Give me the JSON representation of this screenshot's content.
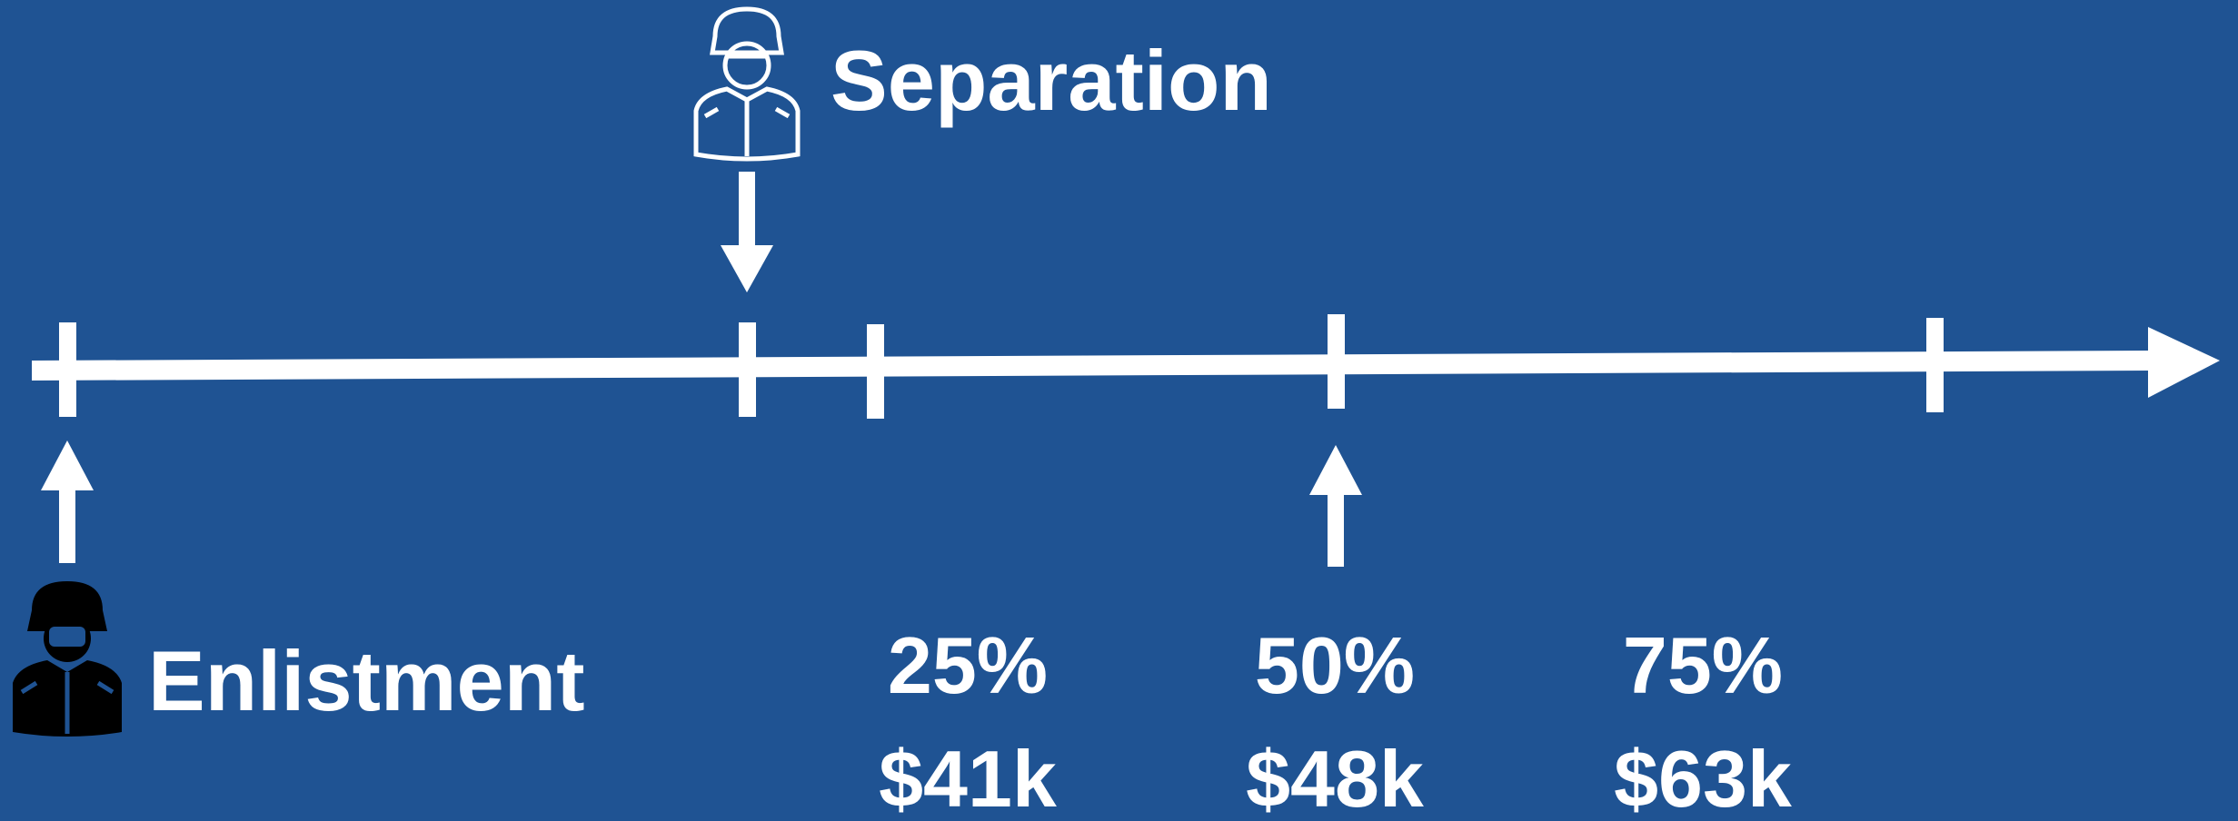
{
  "labels": {
    "separation": "Separation",
    "enlistment": "Enlistment"
  },
  "percentiles": [
    {
      "percent": "25%",
      "salary": "$41k"
    },
    {
      "percent": "50%",
      "salary": "$48k"
    },
    {
      "percent": "75%",
      "salary": "$63k"
    }
  ]
}
